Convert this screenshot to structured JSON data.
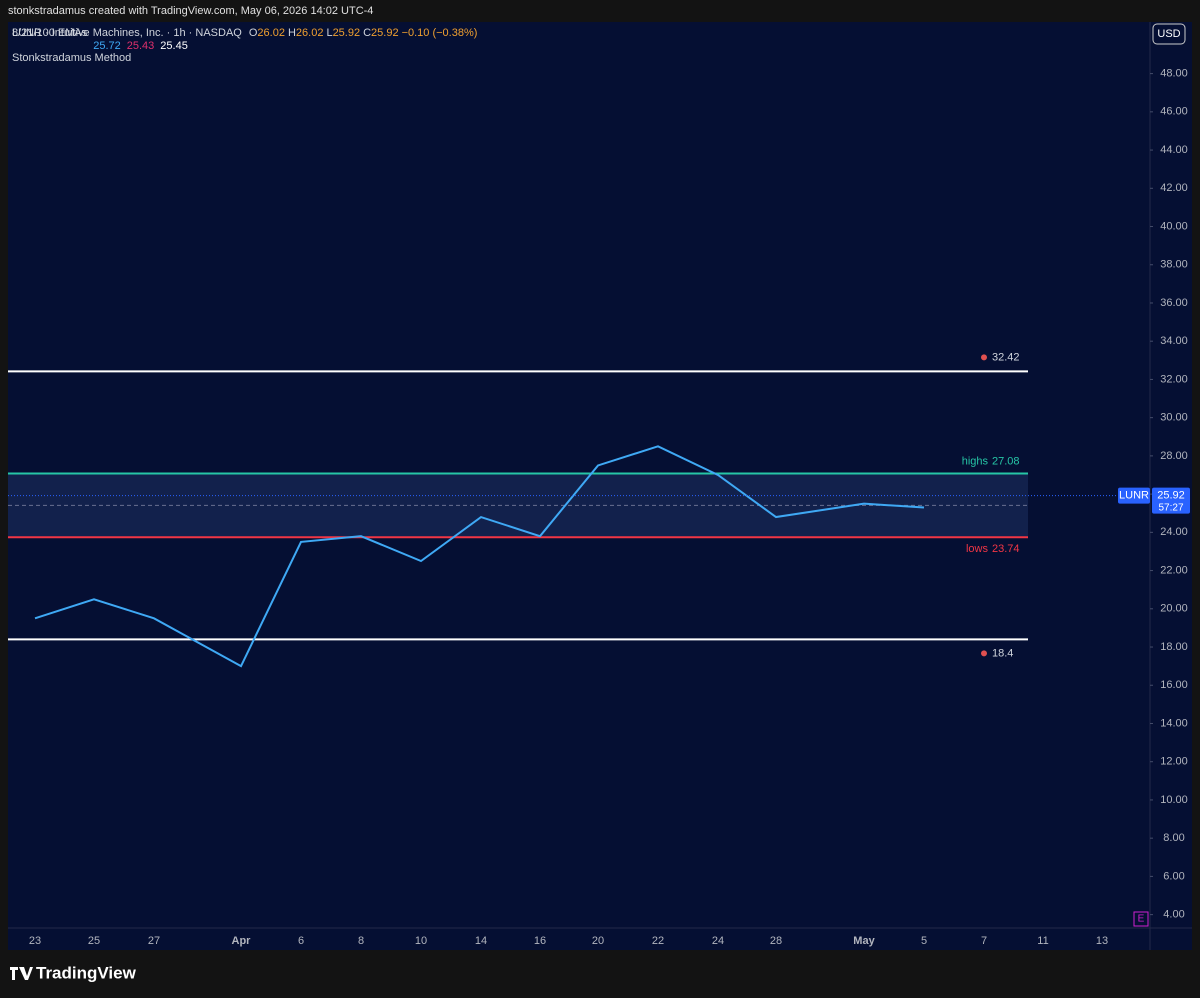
{
  "header": "stonkstradamus created with TradingView.com, May 06, 2026 14:02 UTC-4",
  "legend": {
    "symbol": "LUNR · Intuitive Machines, Inc. · 1h · NASDAQ",
    "ohlc": [
      {
        "key": "O",
        "value": 26.02
      },
      {
        "key": "H",
        "value": 26.02
      },
      {
        "key": "L",
        "value": 25.92
      },
      {
        "key": "C",
        "value": 25.92
      }
    ],
    "change": "−0.10 (−0.38%)",
    "ema_label": "8/21/100 EMAs",
    "ema_values": [
      {
        "value": 25.72,
        "color": "#3fa9f5"
      },
      {
        "value": 25.43,
        "color": "#e0306c"
      },
      {
        "value": 25.45,
        "color": "#ffffff"
      }
    ],
    "method": "Stonkstradamus Method"
  },
  "currency": "USD",
  "earnings": "E",
  "footer": "TradingView",
  "chart_data": {
    "type": "line",
    "categories": [
      "23",
      "25",
      "27",
      "Apr",
      "6",
      "8",
      "10",
      "14",
      "16",
      "20",
      "22",
      "24",
      "28",
      "May",
      "5",
      "7",
      "11",
      "13"
    ],
    "values": [
      19.5,
      20.5,
      19.5,
      17,
      23.5,
      23.8,
      22.5,
      24.8,
      23.8,
      27.5,
      28.5,
      27,
      24.8,
      25.5,
      25.3,
      null,
      null,
      null
    ],
    "color": "#3fa9f5",
    "ylim": [
      3.3,
      50.7
    ],
    "yticks": [
      {
        "value": 4,
        "label": "4.00"
      },
      {
        "value": 6,
        "label": "6.00"
      },
      {
        "value": 8,
        "label": "8.00"
      },
      {
        "value": 10,
        "label": "10.00"
      },
      {
        "value": 12,
        "label": "12.00"
      },
      {
        "value": 14,
        "label": "14.00"
      },
      {
        "value": 16,
        "label": "16.00"
      },
      {
        "value": 18,
        "label": "18.00"
      },
      {
        "value": 20,
        "label": "20.00"
      },
      {
        "value": 22,
        "label": "22.00"
      },
      {
        "value": 24,
        "label": "24.00"
      },
      {
        "value": 26,
        "label": "26.00"
      },
      {
        "value": 28,
        "label": "28.00"
      },
      {
        "value": 30,
        "label": "30.00"
      },
      {
        "value": 32,
        "label": "32.00"
      },
      {
        "value": 34,
        "label": "34.00"
      },
      {
        "value": 36,
        "label": "36.00"
      },
      {
        "value": 38,
        "label": "38.00"
      },
      {
        "value": 40,
        "label": "40.00"
      },
      {
        "value": 42,
        "label": "42.00"
      },
      {
        "value": 44,
        "label": "44.00"
      },
      {
        "value": 46,
        "label": "46.00"
      },
      {
        "value": 48,
        "label": "48.00"
      }
    ],
    "levels": [
      {
        "value": 32.42,
        "color": "#ffffff"
      },
      {
        "name": "highs",
        "value": 27.08,
        "color": "#26c6a6"
      },
      {
        "name": "lows",
        "value": 23.74,
        "color": "#f23645"
      },
      {
        "value": 18.4,
        "color": "#ffffff"
      }
    ],
    "last": {
      "symbol": "LUNR",
      "value": 25.92,
      "countdown": "57:27",
      "color": "#2962ff"
    }
  }
}
